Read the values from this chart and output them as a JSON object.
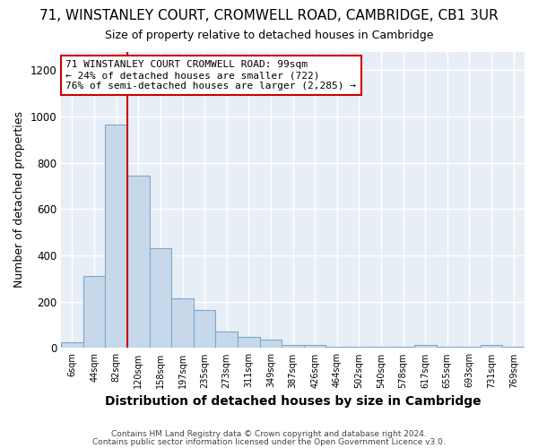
{
  "title": "71, WINSTANLEY COURT, CROMWELL ROAD, CAMBRIDGE, CB1 3UR",
  "subtitle": "Size of property relative to detached houses in Cambridge",
  "xlabel": "Distribution of detached houses by size in Cambridge",
  "ylabel": "Number of detached properties",
  "bin_labels": [
    "6sqm",
    "44sqm",
    "82sqm",
    "120sqm",
    "158sqm",
    "197sqm",
    "235sqm",
    "273sqm",
    "311sqm",
    "349sqm",
    "387sqm",
    "426sqm",
    "464sqm",
    "502sqm",
    "540sqm",
    "578sqm",
    "617sqm",
    "655sqm",
    "693sqm",
    "731sqm",
    "769sqm"
  ],
  "bar_heights": [
    25,
    310,
    965,
    745,
    430,
    213,
    165,
    70,
    48,
    35,
    15,
    15,
    5,
    5,
    5,
    5,
    15,
    5,
    5,
    15,
    5
  ],
  "bar_color": "#c8d8eb",
  "bar_edge_color": "#7aa8cc",
  "property_line_bin_index": 2,
  "annotation_text": "71 WINSTANLEY COURT CROMWELL ROAD: 99sqm\n← 24% of detached houses are smaller (722)\n76% of semi-detached houses are larger (2,285) →",
  "annotation_box_color": "#ffffff",
  "annotation_box_edge": "#cc0000",
  "red_line_color": "#cc0000",
  "ylim": [
    0,
    1280
  ],
  "yticks": [
    0,
    200,
    400,
    600,
    800,
    1000,
    1200
  ],
  "footer1": "Contains HM Land Registry data © Crown copyright and database right 2024.",
  "footer2": "Contains public sector information licensed under the Open Government Licence v3.0.",
  "fig_background_color": "#ffffff",
  "plot_background_color": "#e8eef5",
  "grid_color": "#ffffff",
  "title_fontsize": 11,
  "subtitle_fontsize": 9,
  "ylabel_fontsize": 9,
  "xlabel_fontsize": 10
}
